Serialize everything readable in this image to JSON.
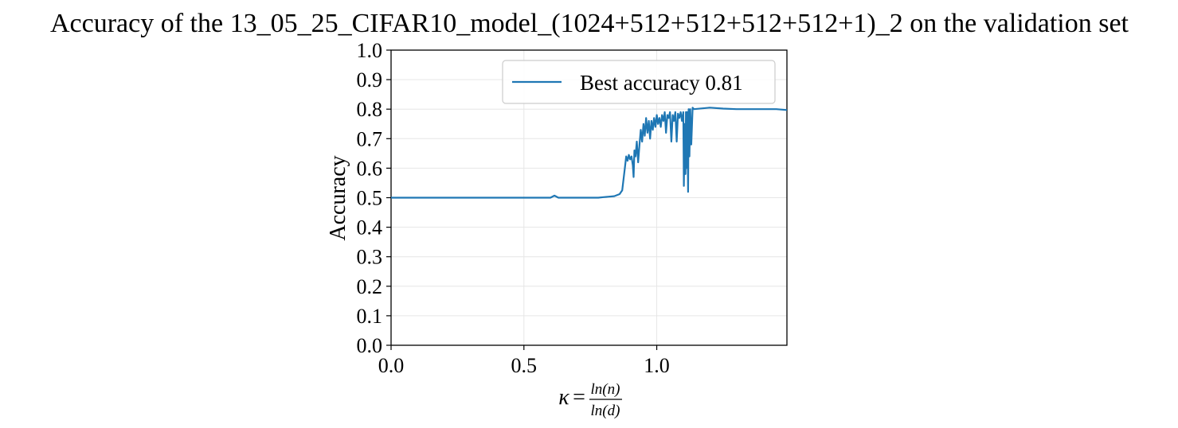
{
  "chart_data": {
    "type": "line",
    "title": "Accuracy of the 13_05_25_CIFAR10_model_(1024+512+512+512+512+1)_2 on the validation set",
    "xlabel": {
      "symbol": "κ",
      "equals": "=",
      "numerator": "ln(n)",
      "denominator": "ln(d)"
    },
    "ylabel": "Accuracy",
    "xlim": [
      0.0,
      1.49
    ],
    "ylim": [
      0.0,
      1.0
    ],
    "xticks": [
      "0.0",
      "0.5",
      "1.0"
    ],
    "xtick_values": [
      0.0,
      0.5,
      1.0
    ],
    "yticks": [
      "0.0",
      "0.1",
      "0.2",
      "0.3",
      "0.4",
      "0.5",
      "0.6",
      "0.7",
      "0.8",
      "0.9",
      "1.0"
    ],
    "ytick_values": [
      0.0,
      0.1,
      0.2,
      0.3,
      0.4,
      0.5,
      0.6,
      0.7,
      0.8,
      0.9,
      1.0
    ],
    "grid": true,
    "legend_position": "top-right",
    "series": [
      {
        "name": "Best accuracy 0.81",
        "color": "#1f77b4",
        "x": [
          0.0,
          0.2,
          0.4,
          0.55,
          0.6,
          0.615,
          0.63,
          0.7,
          0.78,
          0.8,
          0.84,
          0.86,
          0.87,
          0.88,
          0.885,
          0.89,
          0.895,
          0.9,
          0.905,
          0.91,
          0.913,
          0.916,
          0.92,
          0.925,
          0.93,
          0.935,
          0.94,
          0.945,
          0.95,
          0.955,
          0.96,
          0.965,
          0.97,
          0.975,
          0.98,
          0.985,
          0.99,
          0.995,
          1.0,
          1.005,
          1.01,
          1.015,
          1.02,
          1.025,
          1.03,
          1.035,
          1.04,
          1.045,
          1.05,
          1.055,
          1.06,
          1.065,
          1.07,
          1.075,
          1.08,
          1.085,
          1.09,
          1.095,
          1.1,
          1.102,
          1.105,
          1.108,
          1.11,
          1.112,
          1.115,
          1.118,
          1.12,
          1.123,
          1.126,
          1.13,
          1.135,
          1.14,
          1.2,
          1.25,
          1.3,
          1.35,
          1.4,
          1.45,
          1.49
        ],
        "y": [
          0.5,
          0.5,
          0.5,
          0.5,
          0.5,
          0.507,
          0.5,
          0.5,
          0.5,
          0.502,
          0.505,
          0.512,
          0.525,
          0.6,
          0.64,
          0.625,
          0.645,
          0.63,
          0.64,
          0.61,
          0.57,
          0.66,
          0.64,
          0.69,
          0.62,
          0.68,
          0.73,
          0.69,
          0.75,
          0.71,
          0.77,
          0.72,
          0.76,
          0.7,
          0.76,
          0.73,
          0.77,
          0.74,
          0.78,
          0.75,
          0.77,
          0.74,
          0.78,
          0.76,
          0.79,
          0.72,
          0.78,
          0.77,
          0.79,
          0.69,
          0.78,
          0.76,
          0.79,
          0.69,
          0.785,
          0.77,
          0.79,
          0.76,
          0.79,
          0.54,
          0.75,
          0.58,
          0.79,
          0.6,
          0.79,
          0.52,
          0.8,
          0.64,
          0.8,
          0.68,
          0.805,
          0.8,
          0.805,
          0.802,
          0.8,
          0.8,
          0.8,
          0.8,
          0.797
        ]
      }
    ]
  }
}
